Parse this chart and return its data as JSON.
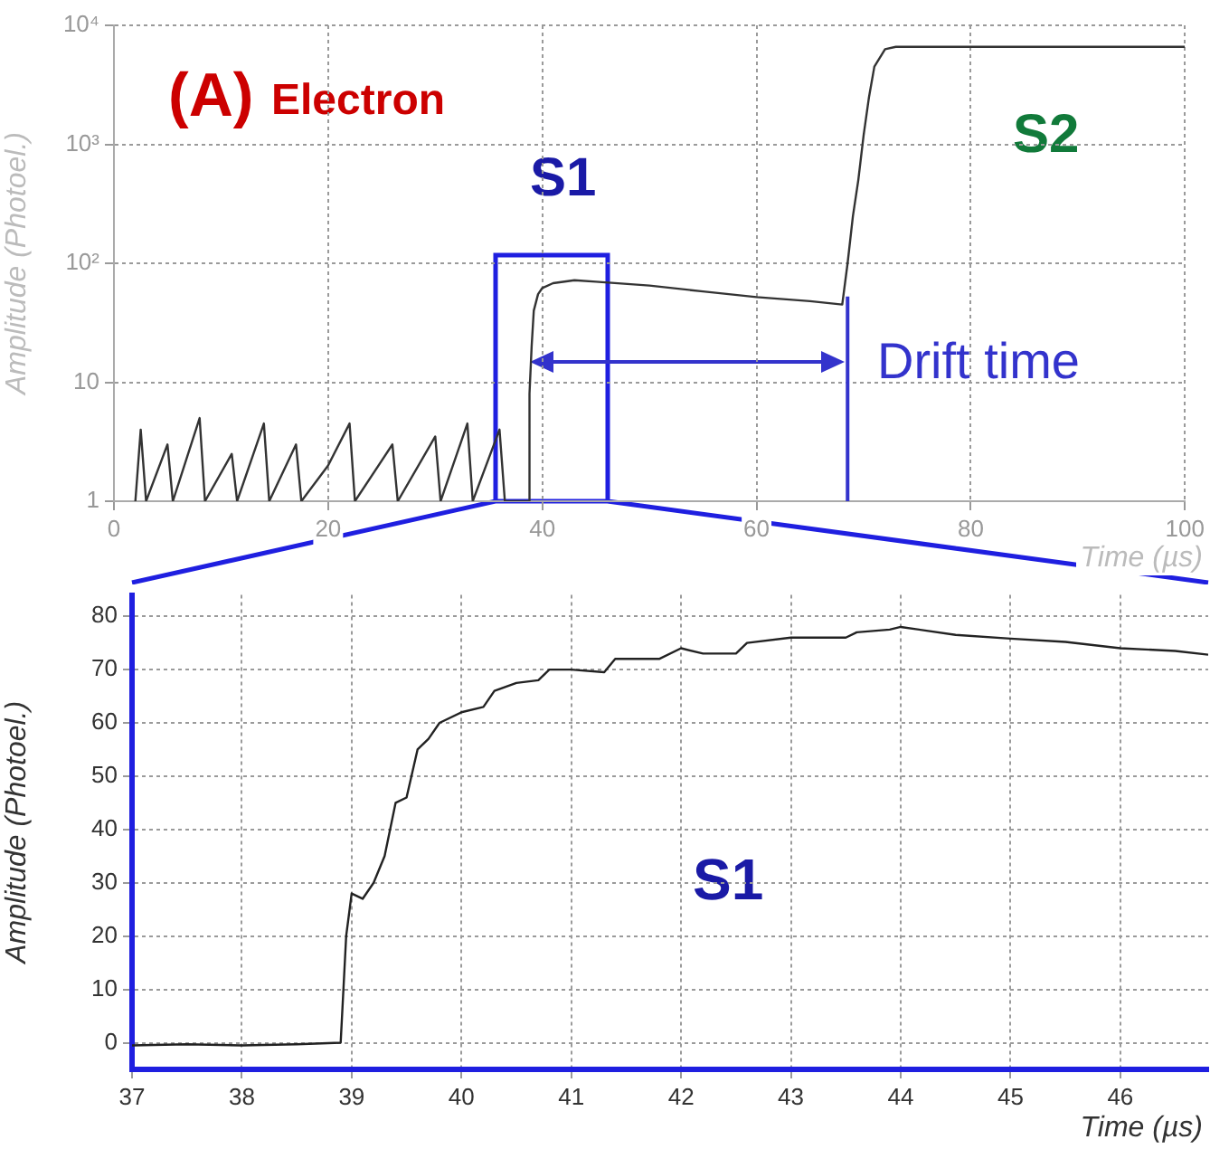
{
  "chart_data": [
    {
      "type": "line",
      "ylabel": "Amplitude (Photoel.)",
      "xlabel": "Time (µs)",
      "log": "y",
      "grid": true,
      "legend": false,
      "marker": "none",
      "line_style": "solid",
      "annotations": [
        "(A)",
        "Electron",
        "S1",
        "S2",
        "Drift time"
      ],
      "xlim": [
        0,
        100
      ],
      "xticks": [
        0,
        20,
        40,
        60,
        80,
        100
      ],
      "ylim": [
        1,
        10000
      ],
      "yticks": [
        1,
        10,
        {
          "value": 100,
          "label": "10²"
        },
        {
          "value": 1000,
          "label": "10³"
        },
        {
          "value": 10000,
          "label": "10⁴"
        }
      ],
      "ref_lines": [
        {
          "axis": "x",
          "value": 68.5,
          "label": null,
          "color": "#3333cc"
        }
      ],
      "series": [
        {
          "color": "#333333",
          "x": [
            2,
            2.5,
            3,
            5,
            5.5,
            8,
            8.5,
            11,
            11.5,
            14,
            14.5,
            17,
            17.5,
            20,
            22,
            22.5,
            26,
            26.5,
            30,
            30.5,
            33,
            33.5,
            36,
            36.5,
            38.7,
            38.8,
            39,
            39.2,
            39.6,
            40,
            41,
            43,
            45,
            50,
            55,
            60,
            65,
            67,
            68,
            68.5,
            69,
            69.5,
            70,
            70.5,
            71,
            72,
            73,
            100
          ],
          "values": [
            1,
            4,
            1,
            3,
            1,
            5,
            1,
            2.5,
            1,
            4.5,
            1,
            3,
            1,
            2,
            4.5,
            1,
            3,
            1,
            3.5,
            1,
            4.5,
            1,
            4,
            1,
            1,
            8,
            20,
            40,
            55,
            62,
            68,
            72,
            70,
            65,
            58,
            52,
            48,
            46,
            45,
            100,
            250,
            500,
            1200,
            2500,
            4500,
            6300,
            6600,
            6600
          ]
        }
      ]
    },
    {
      "type": "line",
      "xlabel": "Time (µs)",
      "ylabel": "Amplitude (Photoel.)",
      "grid": true,
      "legend": false,
      "marker": "none",
      "line_style": "solid",
      "annotations": [
        "S1"
      ],
      "xlim": [
        37,
        46.8
      ],
      "xticks": [
        37,
        38,
        39,
        40,
        41,
        42,
        43,
        44,
        45,
        46
      ],
      "ylim": [
        -5,
        84
      ],
      "yticks": [
        0,
        10,
        20,
        30,
        40,
        50,
        60,
        70,
        80
      ],
      "series": [
        {
          "color": "#222222",
          "x": [
            37,
            37.5,
            38,
            38.5,
            38.9,
            38.95,
            39,
            39.1,
            39.2,
            39.3,
            39.4,
            39.5,
            39.6,
            39.7,
            39.8,
            40,
            40.2,
            40.3,
            40.5,
            40.7,
            40.8,
            41,
            41.3,
            41.4,
            41.8,
            42,
            42.2,
            42.5,
            42.6,
            43,
            43.5,
            43.6,
            43.9,
            44,
            44.5,
            45,
            45.5,
            46,
            46.5,
            46.8
          ],
          "values": [
            -0.5,
            -0.3,
            -0.5,
            -0.3,
            0,
            20,
            28,
            27,
            30,
            35,
            45,
            46,
            55,
            57,
            60,
            62,
            63,
            66,
            67.5,
            68,
            70,
            70,
            69.5,
            72,
            72,
            74,
            73,
            73,
            75,
            76,
            76,
            77,
            77.5,
            78,
            76.5,
            75.8,
            75.2,
            74,
            73.5,
            72.8
          ]
        }
      ]
    }
  ]
}
